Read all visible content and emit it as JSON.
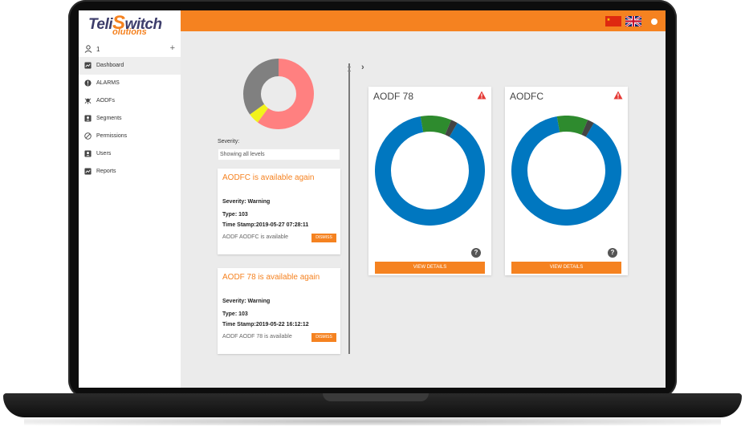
{
  "app": {
    "logo_line1_prefix": "Teli",
    "logo_line1_s": "S",
    "logo_line1_suffix": "witch",
    "logo_line2": "olutions"
  },
  "user": {
    "name": "1",
    "add_symbol": "+"
  },
  "sidebar": {
    "items": [
      {
        "label": "Dashboard",
        "icon": "dashboard-icon",
        "active": true
      },
      {
        "label": "ALARMS",
        "icon": "alarm-icon",
        "active": false
      },
      {
        "label": "AODFs",
        "icon": "aodf-icon",
        "active": false
      },
      {
        "label": "Segments",
        "icon": "segments-icon",
        "active": false
      },
      {
        "label": "Permissions",
        "icon": "permissions-icon",
        "active": false
      },
      {
        "label": "Users",
        "icon": "users-icon",
        "active": false
      },
      {
        "label": "Reports",
        "icon": "reports-icon",
        "active": false
      }
    ]
  },
  "topbar": {
    "color": "#f58220",
    "languages": [
      "chinese-flag-icon",
      "uk-flag-icon"
    ]
  },
  "alarms": {
    "severity_label": "Severity:",
    "severity_filter_value": "Showing all levels",
    "severity_chart": {
      "segments": [
        {
          "color": "#ff8080",
          "value": 0.6
        },
        {
          "color": "#f2f21a",
          "value": 0.05
        },
        {
          "color": "#808080",
          "value": 0.35
        }
      ]
    },
    "cards": [
      {
        "title": "AODFC is available again",
        "severity": "Severity: Warning",
        "type": "Type: 103",
        "timestamp": "Time Stamp:2019-05-27 07:28:11",
        "description": "AODF AODFC is available",
        "dismiss_label": "DISMISS"
      },
      {
        "title": "AODF 78 is available again",
        "severity": "Severity: Warning",
        "type": "Type: 103",
        "timestamp": "Time Stamp:2019-05-22 16:12:12",
        "description": "AODF AODF 78 is available",
        "dismiss_label": "DISMISS"
      }
    ]
  },
  "devices": [
    {
      "name": "AODF 78",
      "button_label": "VIEW DETAILS",
      "help_symbol": "?",
      "ring": [
        {
          "color": "#0077c0",
          "value": 0.88
        },
        {
          "color": "#2e8b2e",
          "value": 0.09
        },
        {
          "color": "#444444",
          "value": 0.02
        }
      ]
    },
    {
      "name": "AODFC",
      "button_label": "VIEW DETAILS",
      "help_symbol": "?",
      "ring": [
        {
          "color": "#0077c0",
          "value": 0.88
        },
        {
          "color": "#2e8b2e",
          "value": 0.09
        },
        {
          "color": "#444444",
          "value": 0.02
        }
      ]
    }
  ]
}
